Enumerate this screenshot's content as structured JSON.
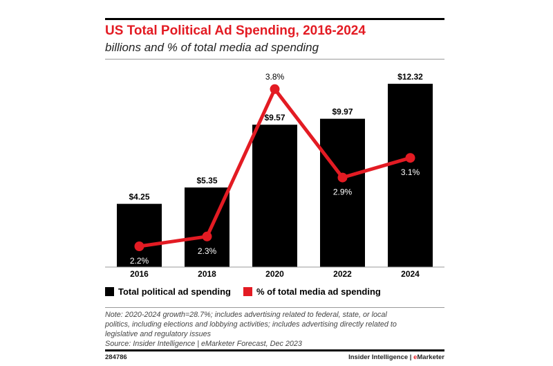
{
  "chart_data": {
    "type": "bar+line",
    "title": "US Total Political Ad Spending, 2016-2024",
    "subtitle": "billions and % of total media ad spending",
    "categories": [
      "2016",
      "2018",
      "2020",
      "2022",
      "2024"
    ],
    "series": [
      {
        "name": "Total political ad spending",
        "type": "bar",
        "color": "#000000",
        "values": [
          4.25,
          5.35,
          9.57,
          9.97,
          12.32
        ],
        "labels": [
          "$4.25",
          "$5.35",
          "$9.57",
          "$9.97",
          "$12.32"
        ]
      },
      {
        "name": "% of total media ad spending",
        "type": "line",
        "color": "#e31b23",
        "values": [
          2.2,
          2.3,
          3.8,
          2.9,
          3.1
        ],
        "labels": [
          "2.2%",
          "2.3%",
          "3.8%",
          "2.9%",
          "3.1%"
        ]
      }
    ],
    "legend": "bottom-left",
    "grid": false
  },
  "note": [
    "Note: 2020-2024 growth=28.7%; includes advertising related to federal, state, or local",
    "politics, including elections and lobbying activities; includes advertising directly related to",
    "legislative and regulatory issues",
    "Source: Insider Intelligence | eMarketer Forecast, Dec 2023"
  ],
  "footer": {
    "id": "284786",
    "brand_a": "Insider Intelligence | ",
    "brand_b": "e",
    "brand_c": "Marketer"
  }
}
